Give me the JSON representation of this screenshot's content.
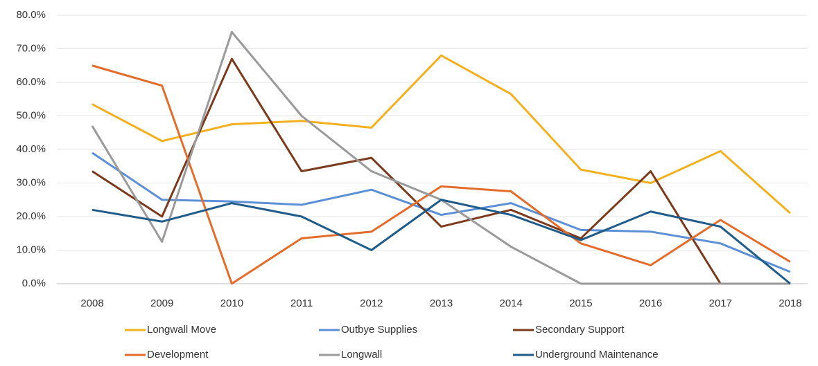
{
  "chart_data": {
    "type": "line",
    "categories": [
      "2008",
      "2009",
      "2010",
      "2011",
      "2012",
      "2013",
      "2014",
      "2015",
      "2016",
      "2017",
      "2018"
    ],
    "series": [
      {
        "name": "Longwall Move",
        "color": "#f2b01e",
        "values": [
          53.5,
          42.5,
          47.5,
          48.5,
          46.5,
          68,
          56.5,
          34,
          30,
          39.5,
          21
        ]
      },
      {
        "name": "Outbye Supplies",
        "color": "#5b8fd6",
        "values": [
          39,
          25,
          24.5,
          23.5,
          28,
          20.5,
          24,
          16,
          15.5,
          12,
          3.5
        ]
      },
      {
        "name": "Secondary Support",
        "color": "#7b3a1c",
        "values": [
          33.5,
          20,
          67,
          33.5,
          37.5,
          17,
          22,
          13.5,
          33.5,
          0,
          0
        ]
      },
      {
        "name": "Development",
        "color": "#e46c2a",
        "values": [
          65,
          59,
          0,
          13.5,
          15.5,
          29,
          27.5,
          12,
          5.5,
          19,
          6.5
        ]
      },
      {
        "name": "Longwall",
        "color": "#9a9a9a",
        "values": [
          47,
          12.5,
          75,
          50,
          33.5,
          25,
          11,
          0,
          0,
          0,
          0
        ]
      },
      {
        "name": "Underground Maintenance",
        "color": "#1f5c8a",
        "values": [
          22,
          18.5,
          24,
          20,
          10,
          25,
          20.5,
          13,
          21.5,
          17,
          0
        ]
      }
    ],
    "ylim": [
      0,
      80
    ],
    "yticks": [
      {
        "value": 0,
        "label": "0.0%"
      },
      {
        "value": 10,
        "label": "10.0%"
      },
      {
        "value": 20,
        "label": "20.0%"
      },
      {
        "value": 30,
        "label": "30.0%"
      },
      {
        "value": 40,
        "label": "40.0%"
      },
      {
        "value": 50,
        "label": "50.0%"
      },
      {
        "value": 60,
        "label": "60.0%"
      },
      {
        "value": 70,
        "label": "70.0%"
      },
      {
        "value": 80,
        "label": "80.0%"
      }
    ],
    "grid": true
  }
}
